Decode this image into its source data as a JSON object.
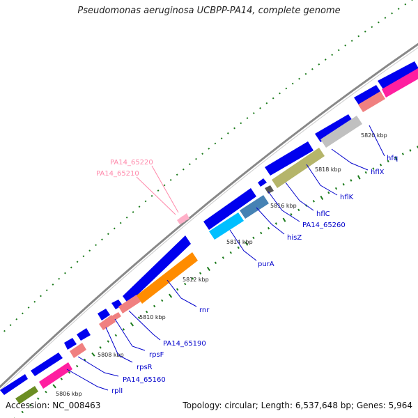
{
  "title": "Pseudomonas aeruginosa UCBPP-PA14, complete genome",
  "footer": {
    "accession": "Accession: NC_008463",
    "stats": "Topology: circular; Length: 6,537,648 bp; Genes: 5,964"
  },
  "ticks": [
    "5806 kbp",
    "5808 kbp",
    "5810 kbp",
    "5812 kbp",
    "5814 kbp",
    "5816 kbp",
    "5818 kbp",
    "5820 kbp"
  ],
  "genes": [
    {
      "name": "rplI",
      "color": "#ff1fa0"
    },
    {
      "name": "PA14_65160",
      "color": "#f08080"
    },
    {
      "name": "rpsR",
      "color": "#f08080"
    },
    {
      "name": "rpsF",
      "color": "#f08080"
    },
    {
      "name": "PA14_65190",
      "color": "#f08080"
    },
    {
      "name": "rnr",
      "color": "#ff8c00"
    },
    {
      "name": "purA",
      "color": "#00bfff"
    },
    {
      "name": "hisZ",
      "color": "#4682b4"
    },
    {
      "name": "PA14_65260",
      "color": "#555555"
    },
    {
      "name": "hflC",
      "color": "#b5b56a"
    },
    {
      "name": "hflK",
      "color": "#b5b56a"
    },
    {
      "name": "hflX",
      "color": "#c0c0c0"
    },
    {
      "name": "hfq",
      "color": "#f08080"
    },
    {
      "name": "PA14_65210",
      "color": "#ffb0c8"
    },
    {
      "name": "PA14_65220",
      "color": "#ffb0c8"
    }
  ],
  "colors": {
    "cds": "#0000ee",
    "backbone": "#888888",
    "tick": "#1a7a1a",
    "label_line": "#0000cc",
    "misc_label": "#ff88aa"
  }
}
